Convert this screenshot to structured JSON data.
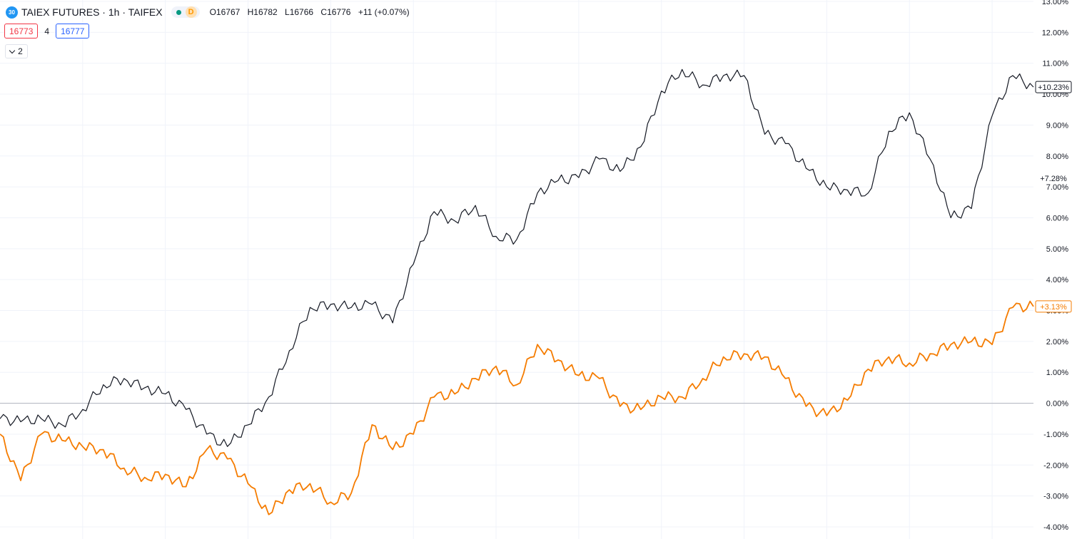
{
  "header": {
    "symbol_badge": "30",
    "title": "TAIEX FUTURES · 1h · TAIFEX",
    "delay_badge": "D",
    "ohlc": {
      "open": "O16767",
      "high": "H16782",
      "low": "L16766",
      "close": "C16776",
      "change": "+11 (+0.07%)"
    }
  },
  "quote": {
    "sell": "16773",
    "spread": "4",
    "buy": "16777"
  },
  "collapse_button": {
    "count": "2"
  },
  "colors": {
    "main_series": "#131722",
    "compare_series": "#f57c00",
    "grid": "#f0f3fa",
    "baseline": "#b2b5be"
  },
  "chart_data": {
    "type": "line",
    "y_axis": {
      "min": -4,
      "max": 13,
      "unit": "%",
      "ticks": [
        "13.00%",
        "12.00%",
        "11.00%",
        "10.00%",
        "9.00%",
        "8.00%",
        "7.00%",
        "6.00%",
        "5.00%",
        "4.00%",
        "3.00%",
        "2.00%",
        "1.00%",
        "0.00%",
        "-1.00%",
        "-2.00%",
        "-3.00%",
        "-4.00%"
      ],
      "tick_values": [
        13,
        12,
        11,
        10,
        9,
        8,
        7,
        6,
        5,
        4,
        3,
        2,
        1,
        0,
        -1,
        -2,
        -3,
        -4
      ]
    },
    "x": [
      0,
      2,
      4,
      6,
      8,
      10,
      12,
      14,
      16,
      18,
      20,
      22,
      24,
      26,
      28,
      30,
      32,
      34,
      36,
      38,
      40,
      42,
      44,
      46,
      48,
      50,
      52,
      54,
      56,
      58,
      60,
      62,
      64,
      66,
      68,
      70,
      72,
      74,
      76,
      78,
      80,
      82,
      84,
      86,
      88,
      90,
      92,
      94,
      96,
      98,
      100
    ],
    "series": [
      {
        "values": [
          -0.5,
          -0.6,
          -0.5,
          -0.7,
          -0.2,
          0.6,
          0.8,
          0.5,
          0.3,
          -0.2,
          -1.0,
          -1.4,
          -0.7,
          0.2,
          1.7,
          3.1,
          3.2,
          3.1,
          3.2,
          2.6,
          4.5,
          6.2,
          5.9,
          6.4,
          5.4,
          5.3,
          6.8,
          7.2,
          7.3,
          7.9,
          7.5,
          8.3,
          10.1,
          10.8,
          10.3,
          10.6,
          10.6,
          8.7,
          8.4,
          7.6,
          7.0,
          6.9,
          6.8,
          8.8,
          9.4,
          7.9,
          6.0,
          6.3,
          9.3,
          10.6,
          10.23
        ],
        "end_label": "+10.23%",
        "mid_label": "+7.28%",
        "mid_label_value": 7.28
      },
      {
        "values": [
          -1.0,
          -2.5,
          -1.0,
          -1.2,
          -1.4,
          -1.5,
          -2.1,
          -2.4,
          -2.3,
          -2.7,
          -1.5,
          -1.8,
          -2.6,
          -3.6,
          -2.8,
          -2.6,
          -3.2,
          -2.9,
          -0.7,
          -1.5,
          -1.0,
          0.2,
          0.3,
          0.8,
          1.2,
          0.6,
          1.9,
          1.4,
          0.9,
          0.8,
          -0.1,
          -0.2,
          0.2,
          0.2,
          0.8,
          1.5,
          1.6,
          1.5,
          0.8,
          -0.1,
          -0.4,
          0.1,
          1.1,
          1.5,
          1.3,
          1.6,
          1.9,
          2.0,
          1.9,
          3.1,
          3.13
        ],
        "end_label": "+3.13%"
      }
    ]
  }
}
